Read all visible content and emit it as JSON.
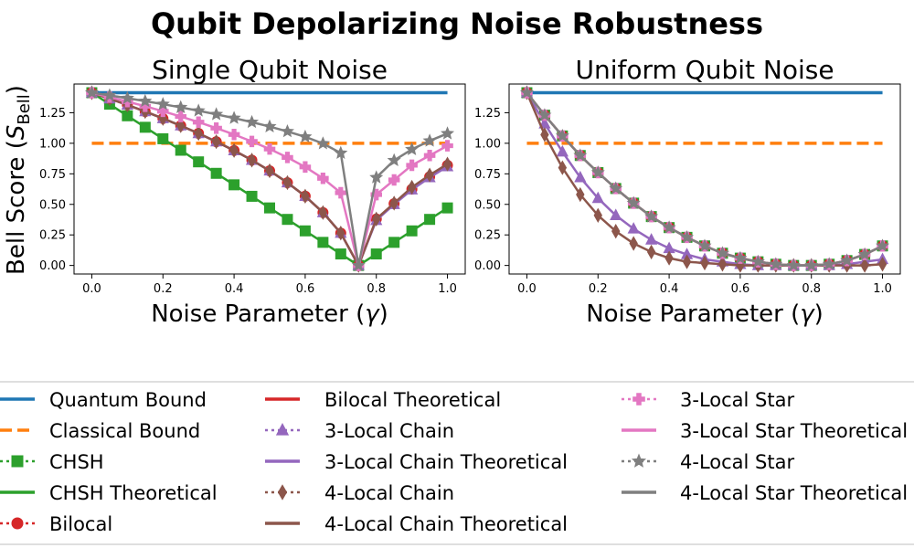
{
  "figure": {
    "suptitle": "Qubit Depolarizing Noise Robustness",
    "ylabel_main": "Bell Score (",
    "ylabel_sym": "S",
    "ylabel_sub": "Bell",
    "ylabel_end": ")"
  },
  "legend": {
    "entries": [
      {
        "label": "Quantum Bound",
        "color": "#1f77b4",
        "line": "solid",
        "marker": "none"
      },
      {
        "label": "Classical Bound",
        "color": "#ff7f0e",
        "line": "dashed",
        "marker": "none"
      },
      {
        "label": "CHSH",
        "color": "#2ca02c",
        "line": "dotted",
        "marker": "square"
      },
      {
        "label": "CHSH Theoretical",
        "color": "#2ca02c",
        "line": "solid",
        "marker": "none"
      },
      {
        "label": "Bilocal",
        "color": "#d62728",
        "line": "dotted",
        "marker": "circle"
      },
      {
        "label": "Bilocal Theoretical",
        "color": "#d62728",
        "line": "solid",
        "marker": "none"
      },
      {
        "label": "3-Local Chain",
        "color": "#9467bd",
        "line": "dotted",
        "marker": "triangle"
      },
      {
        "label": "3-Local Chain Theoretical",
        "color": "#9467bd",
        "line": "solid",
        "marker": "none"
      },
      {
        "label": "4-Local Chain",
        "color": "#8c564b",
        "line": "dotted",
        "marker": "diamond"
      },
      {
        "label": "4-Local Chain Theoretical",
        "color": "#8c564b",
        "line": "solid",
        "marker": "none"
      },
      {
        "label": "3-Local Star",
        "color": "#e377c2",
        "line": "dotted",
        "marker": "plus"
      },
      {
        "label": "3-Local Star Theoretical",
        "color": "#e377c2",
        "line": "solid",
        "marker": "none"
      },
      {
        "label": "4-Local Star",
        "color": "#7f7f7f",
        "line": "dotted",
        "marker": "star"
      },
      {
        "label": "4-Local Star Theoretical",
        "color": "#7f7f7f",
        "line": "solid",
        "marker": "none"
      }
    ]
  },
  "chart_data": [
    {
      "type": "line",
      "title": "Single Qubit Noise",
      "xlabel_main": "Noise Parameter (",
      "xlabel_sym": "γ",
      "xlabel_end": ")",
      "xlim": [
        -0.05,
        1.05
      ],
      "ylim": [
        -0.07,
        1.485
      ],
      "xticks": [
        "0.0",
        "0.2",
        "0.4",
        "0.6",
        "0.8",
        "1.0"
      ],
      "xtick_values": [
        0,
        0.2,
        0.4,
        0.6,
        0.8,
        1.0
      ],
      "yticks": [
        "0.00",
        "0.25",
        "0.50",
        "0.75",
        "1.00",
        "1.25"
      ],
      "ytick_values": [
        0,
        0.25,
        0.5,
        0.75,
        1.0,
        1.25
      ],
      "x": [
        0,
        0.05,
        0.1,
        0.15,
        0.2,
        0.25,
        0.3,
        0.35,
        0.4,
        0.45,
        0.5,
        0.55,
        0.6,
        0.65,
        0.7,
        0.75,
        0.8,
        0.85,
        0.9,
        0.95,
        1.0
      ],
      "grid": false,
      "series": [
        {
          "name": "Quantum Bound",
          "color": "#1f77b4",
          "line": "solid",
          "marker": "none",
          "values": [
            1.414,
            1.414,
            1.414,
            1.414,
            1.414,
            1.414,
            1.414,
            1.414,
            1.414,
            1.414,
            1.414,
            1.414,
            1.414,
            1.414,
            1.414,
            1.414,
            1.414,
            1.414,
            1.414,
            1.414,
            1.414
          ]
        },
        {
          "name": "Classical Bound",
          "color": "#ff7f0e",
          "line": "dashed",
          "marker": "none",
          "values": [
            1,
            1,
            1,
            1,
            1,
            1,
            1,
            1,
            1,
            1,
            1,
            1,
            1,
            1,
            1,
            1,
            1,
            1,
            1,
            1,
            1
          ]
        },
        {
          "name": "CHSH",
          "color": "#2ca02c",
          "line": "solid",
          "marker": "square",
          "values": [
            1.414,
            1.32,
            1.225,
            1.131,
            1.037,
            0.943,
            0.848,
            0.754,
            0.66,
            0.566,
            0.471,
            0.377,
            0.283,
            0.189,
            0.094,
            0.0,
            0.094,
            0.189,
            0.283,
            0.377,
            0.471
          ]
        },
        {
          "name": "Bilocal",
          "color": "#d62728",
          "line": "solid",
          "marker": "circle",
          "values": [
            1.414,
            1.365,
            1.314,
            1.26,
            1.203,
            1.144,
            1.081,
            1.013,
            0.941,
            0.862,
            0.775,
            0.678,
            0.567,
            0.433,
            0.265,
            0.0,
            0.38,
            0.506,
            0.624,
            0.726,
            0.82
          ]
        },
        {
          "name": "3-Local Chain",
          "color": "#9467bd",
          "line": "solid",
          "marker": "triangle",
          "values": [
            1.414,
            1.365,
            1.314,
            1.26,
            1.203,
            1.144,
            1.081,
            1.013,
            0.941,
            0.862,
            0.775,
            0.678,
            0.567,
            0.433,
            0.265,
            0.0,
            0.37,
            0.5,
            0.62,
            0.72,
            0.81
          ]
        },
        {
          "name": "4-Local Chain",
          "color": "#8c564b",
          "line": "solid",
          "marker": "diamond",
          "values": [
            1.414,
            1.365,
            1.314,
            1.26,
            1.203,
            1.144,
            1.081,
            1.013,
            0.941,
            0.862,
            0.775,
            0.678,
            0.567,
            0.433,
            0.265,
            0.0,
            0.38,
            0.51,
            0.64,
            0.74,
            0.83
          ]
        },
        {
          "name": "3-Local Star",
          "color": "#e377c2",
          "line": "solid",
          "marker": "plus",
          "values": [
            1.414,
            1.378,
            1.341,
            1.303,
            1.262,
            1.219,
            1.173,
            1.124,
            1.072,
            1.015,
            0.953,
            0.884,
            0.806,
            0.713,
            0.595,
            0.0,
            0.58,
            0.7,
            0.82,
            0.9,
            0.98
          ]
        },
        {
          "name": "4-Local Star",
          "color": "#7f7f7f",
          "line": "solid",
          "marker": "star",
          "values": [
            1.414,
            1.392,
            1.369,
            1.345,
            1.32,
            1.294,
            1.266,
            1.237,
            1.206,
            1.173,
            1.137,
            1.097,
            1.053,
            0.998,
            0.92,
            0.0,
            0.72,
            0.86,
            0.95,
            1.02,
            1.08
          ]
        }
      ]
    },
    {
      "type": "line",
      "title": "Uniform Qubit Noise",
      "xlabel_main": "Noise Parameter (",
      "xlabel_sym": "γ",
      "xlabel_end": ")",
      "xlim": [
        -0.05,
        1.05
      ],
      "ylim": [
        -0.07,
        1.485
      ],
      "xticks": [
        "0.0",
        "0.2",
        "0.4",
        "0.6",
        "0.8",
        "1.0"
      ],
      "xtick_values": [
        0,
        0.2,
        0.4,
        0.6,
        0.8,
        1.0
      ],
      "yticks": [
        "0.00",
        "0.25",
        "0.50",
        "0.75",
        "1.00",
        "1.25"
      ],
      "ytick_values": [
        0,
        0.25,
        0.5,
        0.75,
        1.0,
        1.25
      ],
      "x": [
        0,
        0.05,
        0.1,
        0.15,
        0.2,
        0.25,
        0.3,
        0.35,
        0.4,
        0.45,
        0.5,
        0.55,
        0.6,
        0.65,
        0.7,
        0.75,
        0.8,
        0.85,
        0.9,
        0.95,
        1.0
      ],
      "grid": false,
      "series": [
        {
          "name": "Quantum Bound",
          "color": "#1f77b4",
          "line": "solid",
          "marker": "none",
          "values": [
            1.414,
            1.414,
            1.414,
            1.414,
            1.414,
            1.414,
            1.414,
            1.414,
            1.414,
            1.414,
            1.414,
            1.414,
            1.414,
            1.414,
            1.414,
            1.414,
            1.414,
            1.414,
            1.414,
            1.414,
            1.414
          ]
        },
        {
          "name": "Classical Bound",
          "color": "#ff7f0e",
          "line": "dashed",
          "marker": "none",
          "values": [
            1,
            1,
            1,
            1,
            1,
            1,
            1,
            1,
            1,
            1,
            1,
            1,
            1,
            1,
            1,
            1,
            1,
            1,
            1,
            1,
            1
          ]
        },
        {
          "name": "CHSH",
          "color": "#2ca02c",
          "line": "solid",
          "marker": "square",
          "values": [
            1.414,
            1.23,
            1.06,
            0.9,
            0.76,
            0.63,
            0.51,
            0.4,
            0.31,
            0.23,
            0.16,
            0.1,
            0.06,
            0.03,
            0.01,
            0.0,
            0.0,
            0.01,
            0.04,
            0.09,
            0.16
          ]
        },
        {
          "name": "Bilocal",
          "color": "#d62728",
          "line": "solid",
          "marker": "circle",
          "values": [
            1.414,
            1.23,
            1.06,
            0.9,
            0.76,
            0.63,
            0.51,
            0.4,
            0.31,
            0.23,
            0.16,
            0.1,
            0.06,
            0.03,
            0.01,
            0.0,
            0.0,
            0.01,
            0.04,
            0.09,
            0.16
          ]
        },
        {
          "name": "3-Local Chain",
          "color": "#9467bd",
          "line": "solid",
          "marker": "triangle",
          "values": [
            1.414,
            1.16,
            0.93,
            0.72,
            0.55,
            0.41,
            0.3,
            0.21,
            0.14,
            0.09,
            0.05,
            0.03,
            0.01,
            0.0,
            0.0,
            0.0,
            0.0,
            0.0,
            0.01,
            0.03,
            0.05
          ]
        },
        {
          "name": "4-Local Chain",
          "color": "#8c564b",
          "line": "solid",
          "marker": "diamond",
          "values": [
            1.414,
            1.07,
            0.8,
            0.58,
            0.41,
            0.28,
            0.18,
            0.11,
            0.06,
            0.03,
            0.02,
            0.01,
            0.0,
            0.0,
            0.0,
            0.0,
            0.0,
            0.0,
            0.0,
            0.0,
            0.01
          ]
        },
        {
          "name": "3-Local Star",
          "color": "#e377c2",
          "line": "solid",
          "marker": "plus",
          "values": [
            1.414,
            1.23,
            1.06,
            0.9,
            0.76,
            0.63,
            0.51,
            0.4,
            0.31,
            0.23,
            0.16,
            0.1,
            0.06,
            0.03,
            0.01,
            0.0,
            0.0,
            0.01,
            0.04,
            0.09,
            0.16
          ]
        },
        {
          "name": "4-Local Star",
          "color": "#7f7f7f",
          "line": "solid",
          "marker": "star",
          "values": [
            1.414,
            1.23,
            1.06,
            0.9,
            0.76,
            0.63,
            0.51,
            0.4,
            0.31,
            0.23,
            0.16,
            0.1,
            0.06,
            0.03,
            0.01,
            0.0,
            0.0,
            0.01,
            0.04,
            0.09,
            0.16
          ]
        }
      ]
    }
  ]
}
